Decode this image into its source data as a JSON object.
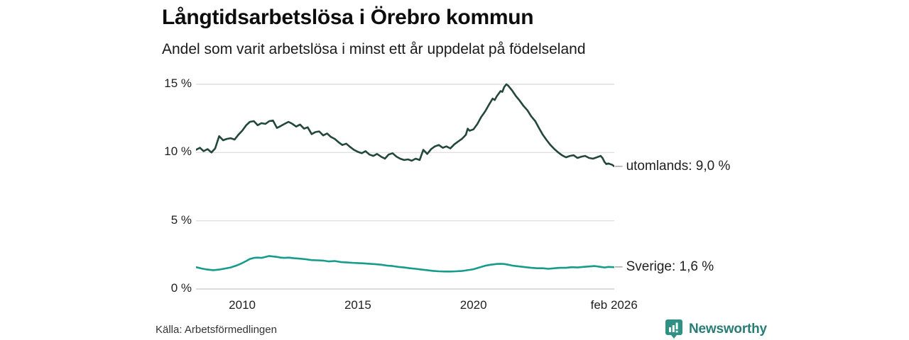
{
  "header": {
    "title": "Långtidsarbetslösa i Örebro kommun",
    "subtitle": "Andel som varit arbetslösa i minst ett år uppdelat på födelseland"
  },
  "footer": {
    "source": "Källa: Arbetsförmedlingen",
    "brand": "Newsworthy"
  },
  "colors": {
    "series_utomlands": "#24473b",
    "series_sverige": "#169b8c",
    "gridline": "#e0e0e0",
    "gridline_zero": "#cfcfcf",
    "label_dash": "#9a9a9a",
    "brand_badge": "#2f9183",
    "brand_text": "#2a7d74"
  },
  "chart_data": {
    "type": "line",
    "title": "Långtidsarbetslösa i Örebro kommun",
    "subtitle": "Andel som varit arbetslösa i minst ett år uppdelat på födelseland",
    "xlabel": "",
    "ylabel": "",
    "x_unit": "decimal_year",
    "xlim": [
      2008,
      2026.17
    ],
    "ylim": [
      0,
      15
    ],
    "grid": true,
    "legend_position": "right-end-labels",
    "label_dash": "–",
    "y_ticks": [
      {
        "value": 15,
        "label": "15 %"
      },
      {
        "value": 10,
        "label": "10 %"
      },
      {
        "value": 5,
        "label": "5 %"
      },
      {
        "value": 0,
        "label": "0 %"
      }
    ],
    "x_ticks": [
      {
        "value": 2010,
        "label": "2010"
      },
      {
        "value": 2015,
        "label": "2015"
      },
      {
        "value": 2020,
        "label": "2020"
      },
      {
        "value": 2026.08,
        "label": "feb 2026"
      }
    ],
    "series": [
      {
        "name": "utomlands",
        "end_label": "utomlands: 9,0 %",
        "end_value_label": "9,0 %",
        "color": "#24473b",
        "points": [
          [
            2008.0,
            10.2
          ],
          [
            2008.17,
            10.35
          ],
          [
            2008.33,
            10.1
          ],
          [
            2008.5,
            10.25
          ],
          [
            2008.67,
            10.0
          ],
          [
            2008.83,
            10.3
          ],
          [
            2009.0,
            11.2
          ],
          [
            2009.17,
            10.9
          ],
          [
            2009.33,
            11.0
          ],
          [
            2009.5,
            11.05
          ],
          [
            2009.67,
            10.95
          ],
          [
            2009.83,
            11.3
          ],
          [
            2010.0,
            11.6
          ],
          [
            2010.17,
            12.0
          ],
          [
            2010.33,
            12.25
          ],
          [
            2010.5,
            12.3
          ],
          [
            2010.67,
            12.0
          ],
          [
            2010.83,
            12.15
          ],
          [
            2011.0,
            12.1
          ],
          [
            2011.17,
            12.3
          ],
          [
            2011.33,
            12.35
          ],
          [
            2011.5,
            11.8
          ],
          [
            2011.67,
            11.95
          ],
          [
            2011.83,
            12.1
          ],
          [
            2012.0,
            12.25
          ],
          [
            2012.17,
            12.1
          ],
          [
            2012.33,
            11.9
          ],
          [
            2012.5,
            12.05
          ],
          [
            2012.67,
            11.75
          ],
          [
            2012.83,
            11.85
          ],
          [
            2013.0,
            11.35
          ],
          [
            2013.17,
            11.5
          ],
          [
            2013.33,
            11.55
          ],
          [
            2013.5,
            11.25
          ],
          [
            2013.67,
            11.4
          ],
          [
            2013.83,
            11.15
          ],
          [
            2014.0,
            11.0
          ],
          [
            2014.17,
            10.75
          ],
          [
            2014.33,
            10.55
          ],
          [
            2014.5,
            10.65
          ],
          [
            2014.67,
            10.4
          ],
          [
            2014.83,
            10.2
          ],
          [
            2015.0,
            10.05
          ],
          [
            2015.17,
            9.95
          ],
          [
            2015.33,
            10.1
          ],
          [
            2015.5,
            9.85
          ],
          [
            2015.67,
            9.75
          ],
          [
            2015.83,
            9.9
          ],
          [
            2016.0,
            9.7
          ],
          [
            2016.17,
            9.55
          ],
          [
            2016.33,
            9.85
          ],
          [
            2016.5,
            9.95
          ],
          [
            2016.67,
            9.7
          ],
          [
            2016.83,
            9.55
          ],
          [
            2017.0,
            9.45
          ],
          [
            2017.17,
            9.5
          ],
          [
            2017.33,
            9.4
          ],
          [
            2017.5,
            9.55
          ],
          [
            2017.67,
            9.45
          ],
          [
            2017.83,
            10.2
          ],
          [
            2018.0,
            9.9
          ],
          [
            2018.17,
            10.25
          ],
          [
            2018.33,
            10.45
          ],
          [
            2018.5,
            10.55
          ],
          [
            2018.67,
            10.35
          ],
          [
            2018.83,
            10.45
          ],
          [
            2019.0,
            10.3
          ],
          [
            2019.17,
            10.6
          ],
          [
            2019.33,
            10.8
          ],
          [
            2019.5,
            11.0
          ],
          [
            2019.67,
            11.3
          ],
          [
            2019.75,
            11.75
          ],
          [
            2019.83,
            11.6
          ],
          [
            2020.0,
            11.7
          ],
          [
            2020.17,
            12.1
          ],
          [
            2020.33,
            12.6
          ],
          [
            2020.5,
            13.0
          ],
          [
            2020.67,
            13.5
          ],
          [
            2020.83,
            13.95
          ],
          [
            2020.92,
            13.85
          ],
          [
            2021.0,
            14.1
          ],
          [
            2021.17,
            14.5
          ],
          [
            2021.25,
            14.45
          ],
          [
            2021.33,
            14.8
          ],
          [
            2021.42,
            15.0
          ],
          [
            2021.5,
            14.9
          ],
          [
            2021.67,
            14.55
          ],
          [
            2021.83,
            14.15
          ],
          [
            2022.0,
            13.8
          ],
          [
            2022.17,
            13.4
          ],
          [
            2022.33,
            13.1
          ],
          [
            2022.5,
            12.65
          ],
          [
            2022.67,
            12.3
          ],
          [
            2022.83,
            11.8
          ],
          [
            2023.0,
            11.3
          ],
          [
            2023.17,
            10.9
          ],
          [
            2023.33,
            10.55
          ],
          [
            2023.5,
            10.25
          ],
          [
            2023.67,
            10.0
          ],
          [
            2023.83,
            9.8
          ],
          [
            2024.0,
            9.65
          ],
          [
            2024.17,
            9.75
          ],
          [
            2024.33,
            9.8
          ],
          [
            2024.5,
            9.6
          ],
          [
            2024.67,
            9.7
          ],
          [
            2024.83,
            9.75
          ],
          [
            2025.0,
            9.6
          ],
          [
            2025.17,
            9.55
          ],
          [
            2025.33,
            9.65
          ],
          [
            2025.5,
            9.75
          ],
          [
            2025.58,
            9.6
          ],
          [
            2025.67,
            9.3
          ],
          [
            2025.75,
            9.15
          ],
          [
            2025.83,
            9.2
          ],
          [
            2026.0,
            9.1
          ],
          [
            2026.08,
            9.0
          ]
        ]
      },
      {
        "name": "Sverige",
        "end_label": "Sverige: 1,6 %",
        "end_value_label": "1,6 %",
        "color": "#169b8c",
        "points": [
          [
            2008.0,
            1.6
          ],
          [
            2008.25,
            1.5
          ],
          [
            2008.5,
            1.42
          ],
          [
            2008.75,
            1.38
          ],
          [
            2009.0,
            1.42
          ],
          [
            2009.25,
            1.5
          ],
          [
            2009.5,
            1.58
          ],
          [
            2009.75,
            1.72
          ],
          [
            2010.0,
            1.9
          ],
          [
            2010.17,
            2.05
          ],
          [
            2010.33,
            2.2
          ],
          [
            2010.5,
            2.28
          ],
          [
            2010.67,
            2.3
          ],
          [
            2010.83,
            2.28
          ],
          [
            2011.0,
            2.35
          ],
          [
            2011.17,
            2.42
          ],
          [
            2011.33,
            2.38
          ],
          [
            2011.5,
            2.35
          ],
          [
            2011.67,
            2.3
          ],
          [
            2011.83,
            2.28
          ],
          [
            2012.0,
            2.3
          ],
          [
            2012.25,
            2.25
          ],
          [
            2012.5,
            2.22
          ],
          [
            2012.75,
            2.18
          ],
          [
            2013.0,
            2.12
          ],
          [
            2013.25,
            2.1
          ],
          [
            2013.5,
            2.08
          ],
          [
            2013.75,
            2.02
          ],
          [
            2014.0,
            2.05
          ],
          [
            2014.25,
            1.98
          ],
          [
            2014.5,
            1.95
          ],
          [
            2014.75,
            1.92
          ],
          [
            2015.0,
            1.9
          ],
          [
            2015.25,
            1.88
          ],
          [
            2015.5,
            1.85
          ],
          [
            2015.75,
            1.82
          ],
          [
            2016.0,
            1.78
          ],
          [
            2016.25,
            1.72
          ],
          [
            2016.5,
            1.68
          ],
          [
            2016.75,
            1.62
          ],
          [
            2017.0,
            1.58
          ],
          [
            2017.25,
            1.52
          ],
          [
            2017.5,
            1.48
          ],
          [
            2017.75,
            1.42
          ],
          [
            2018.0,
            1.38
          ],
          [
            2018.25,
            1.33
          ],
          [
            2018.5,
            1.3
          ],
          [
            2018.75,
            1.28
          ],
          [
            2019.0,
            1.28
          ],
          [
            2019.25,
            1.3
          ],
          [
            2019.5,
            1.32
          ],
          [
            2019.75,
            1.38
          ],
          [
            2020.0,
            1.45
          ],
          [
            2020.25,
            1.58
          ],
          [
            2020.5,
            1.7
          ],
          [
            2020.75,
            1.78
          ],
          [
            2021.0,
            1.83
          ],
          [
            2021.17,
            1.85
          ],
          [
            2021.33,
            1.83
          ],
          [
            2021.5,
            1.78
          ],
          [
            2021.67,
            1.72
          ],
          [
            2021.83,
            1.68
          ],
          [
            2022.0,
            1.65
          ],
          [
            2022.25,
            1.6
          ],
          [
            2022.5,
            1.55
          ],
          [
            2022.75,
            1.52
          ],
          [
            2023.0,
            1.52
          ],
          [
            2023.25,
            1.48
          ],
          [
            2023.5,
            1.52
          ],
          [
            2023.75,
            1.55
          ],
          [
            2024.0,
            1.55
          ],
          [
            2024.25,
            1.6
          ],
          [
            2024.5,
            1.58
          ],
          [
            2024.75,
            1.62
          ],
          [
            2025.0,
            1.65
          ],
          [
            2025.25,
            1.68
          ],
          [
            2025.5,
            1.62
          ],
          [
            2025.67,
            1.58
          ],
          [
            2025.83,
            1.62
          ],
          [
            2026.08,
            1.6
          ]
        ]
      }
    ]
  }
}
